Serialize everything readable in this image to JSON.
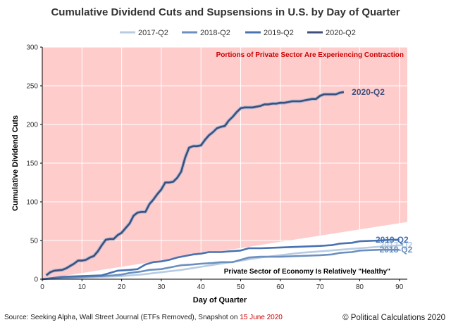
{
  "colors": {
    "shade": "#ffcccc",
    "red_text": "#cc0000",
    "axis": "#000000",
    "grid": "#ffffff"
  },
  "chart_data": {
    "type": "line",
    "title": "Cumulative Dividend Cuts and Supsensions in U.S. by Day of Quarter",
    "xlabel": "Day of Quarter",
    "ylabel": "Cumulative Dividend Cuts",
    "xlim": [
      0,
      92
    ],
    "ylim": [
      0,
      300
    ],
    "x_ticks": [
      0,
      10,
      20,
      30,
      40,
      50,
      60,
      70,
      80,
      90
    ],
    "y_ticks": [
      0,
      50,
      100,
      150,
      200,
      250,
      300
    ],
    "legend_position": "top",
    "shaded_region": {
      "description_top": "Portions of Private Sector Are Experiencing Contraction",
      "description_bottom": "Private Sector of Economy Is Relatively \"Healthy\"",
      "boundary": [
        [
          0,
          0
        ],
        [
          92,
          74
        ]
      ]
    },
    "series": [
      {
        "name": "2017-Q2",
        "color": "#b7cce3",
        "label": "2017-Q2",
        "points": [
          [
            0,
            0
          ],
          [
            5,
            1
          ],
          [
            10,
            2
          ],
          [
            15,
            3
          ],
          [
            20,
            4
          ],
          [
            25,
            6
          ],
          [
            30,
            9
          ],
          [
            35,
            12
          ],
          [
            40,
            16
          ],
          [
            45,
            20
          ],
          [
            50,
            24
          ],
          [
            55,
            28
          ],
          [
            60,
            31
          ],
          [
            65,
            34
          ],
          [
            70,
            36
          ],
          [
            75,
            38
          ],
          [
            80,
            40
          ],
          [
            85,
            42
          ],
          [
            91,
            44
          ]
        ]
      },
      {
        "name": "2018-Q2",
        "color": "#6b8fbf",
        "label": "2018-Q2",
        "points": [
          [
            0,
            0
          ],
          [
            5,
            2
          ],
          [
            10,
            3
          ],
          [
            15,
            4
          ],
          [
            18,
            5
          ],
          [
            20,
            6
          ],
          [
            22,
            8
          ],
          [
            25,
            10
          ],
          [
            27,
            12
          ],
          [
            30,
            13
          ],
          [
            33,
            16
          ],
          [
            35,
            18
          ],
          [
            38,
            19
          ],
          [
            40,
            20
          ],
          [
            43,
            21
          ],
          [
            45,
            22
          ],
          [
            48,
            22
          ],
          [
            50,
            25
          ],
          [
            52,
            28
          ],
          [
            55,
            29
          ],
          [
            60,
            29
          ],
          [
            65,
            30
          ],
          [
            70,
            31
          ],
          [
            73,
            32
          ],
          [
            75,
            34
          ],
          [
            78,
            35
          ],
          [
            80,
            37
          ],
          [
            85,
            38
          ],
          [
            90,
            38
          ]
        ]
      },
      {
        "name": "2019-Q2",
        "color": "#4872b0",
        "label": "2019-Q2",
        "points": [
          [
            0,
            0
          ],
          [
            5,
            3
          ],
          [
            10,
            4
          ],
          [
            15,
            5
          ],
          [
            17,
            8
          ],
          [
            19,
            11
          ],
          [
            22,
            12
          ],
          [
            24,
            13
          ],
          [
            26,
            19
          ],
          [
            28,
            22
          ],
          [
            30,
            23
          ],
          [
            32,
            25
          ],
          [
            34,
            28
          ],
          [
            36,
            30
          ],
          [
            38,
            32
          ],
          [
            40,
            33
          ],
          [
            42,
            35
          ],
          [
            45,
            35
          ],
          [
            47,
            36
          ],
          [
            50,
            37
          ],
          [
            52,
            40
          ],
          [
            55,
            40
          ],
          [
            60,
            41
          ],
          [
            65,
            42
          ],
          [
            70,
            43
          ],
          [
            73,
            44
          ],
          [
            75,
            46
          ],
          [
            78,
            47
          ],
          [
            80,
            49
          ],
          [
            85,
            50
          ],
          [
            88,
            51
          ],
          [
            90,
            51
          ]
        ]
      },
      {
        "name": "2020-Q2",
        "color": "#3d4f7a",
        "label": "2020-Q2",
        "points": [
          [
            1,
            5
          ],
          [
            2,
            9
          ],
          [
            3,
            11
          ],
          [
            5,
            12
          ],
          [
            6,
            14
          ],
          [
            7,
            17
          ],
          [
            8,
            20
          ],
          [
            9,
            24
          ],
          [
            10,
            24
          ],
          [
            11,
            25
          ],
          [
            12,
            28
          ],
          [
            13,
            30
          ],
          [
            14,
            36
          ],
          [
            15,
            44
          ],
          [
            16,
            51
          ],
          [
            17,
            52
          ],
          [
            18,
            52
          ],
          [
            19,
            57
          ],
          [
            20,
            60
          ],
          [
            21,
            66
          ],
          [
            22,
            72
          ],
          [
            23,
            82
          ],
          [
            24,
            86
          ],
          [
            25,
            87
          ],
          [
            26,
            87
          ],
          [
            27,
            97
          ],
          [
            28,
            103
          ],
          [
            29,
            110
          ],
          [
            30,
            116
          ],
          [
            31,
            125
          ],
          [
            32,
            125
          ],
          [
            33,
            126
          ],
          [
            34,
            131
          ],
          [
            35,
            139
          ],
          [
            36,
            157
          ],
          [
            37,
            170
          ],
          [
            38,
            172
          ],
          [
            39,
            172
          ],
          [
            40,
            173
          ],
          [
            41,
            180
          ],
          [
            42,
            186
          ],
          [
            43,
            190
          ],
          [
            44,
            195
          ],
          [
            45,
            197
          ],
          [
            46,
            198
          ],
          [
            47,
            205
          ],
          [
            48,
            210
          ],
          [
            49,
            216
          ],
          [
            50,
            221
          ],
          [
            51,
            222
          ],
          [
            52,
            222
          ],
          [
            53,
            222
          ],
          [
            54,
            223
          ],
          [
            55,
            224
          ],
          [
            56,
            226
          ],
          [
            57,
            226
          ],
          [
            58,
            227
          ],
          [
            59,
            227
          ],
          [
            60,
            228
          ],
          [
            61,
            228
          ],
          [
            62,
            229
          ],
          [
            63,
            230
          ],
          [
            64,
            230
          ],
          [
            65,
            230
          ],
          [
            66,
            231
          ],
          [
            67,
            232
          ],
          [
            68,
            233
          ],
          [
            69,
            233
          ],
          [
            70,
            237
          ],
          [
            71,
            239
          ],
          [
            72,
            239
          ],
          [
            73,
            239
          ],
          [
            74,
            239
          ],
          [
            75,
            241
          ],
          [
            76,
            242
          ]
        ]
      }
    ]
  },
  "footer": {
    "source_prefix": "Source: Seeking Alpha, Wall Street Journal (ETFs Removed), Snapshot on ",
    "source_date": "15 June 2020",
    "copyright": "© Political Calculations 2020"
  }
}
